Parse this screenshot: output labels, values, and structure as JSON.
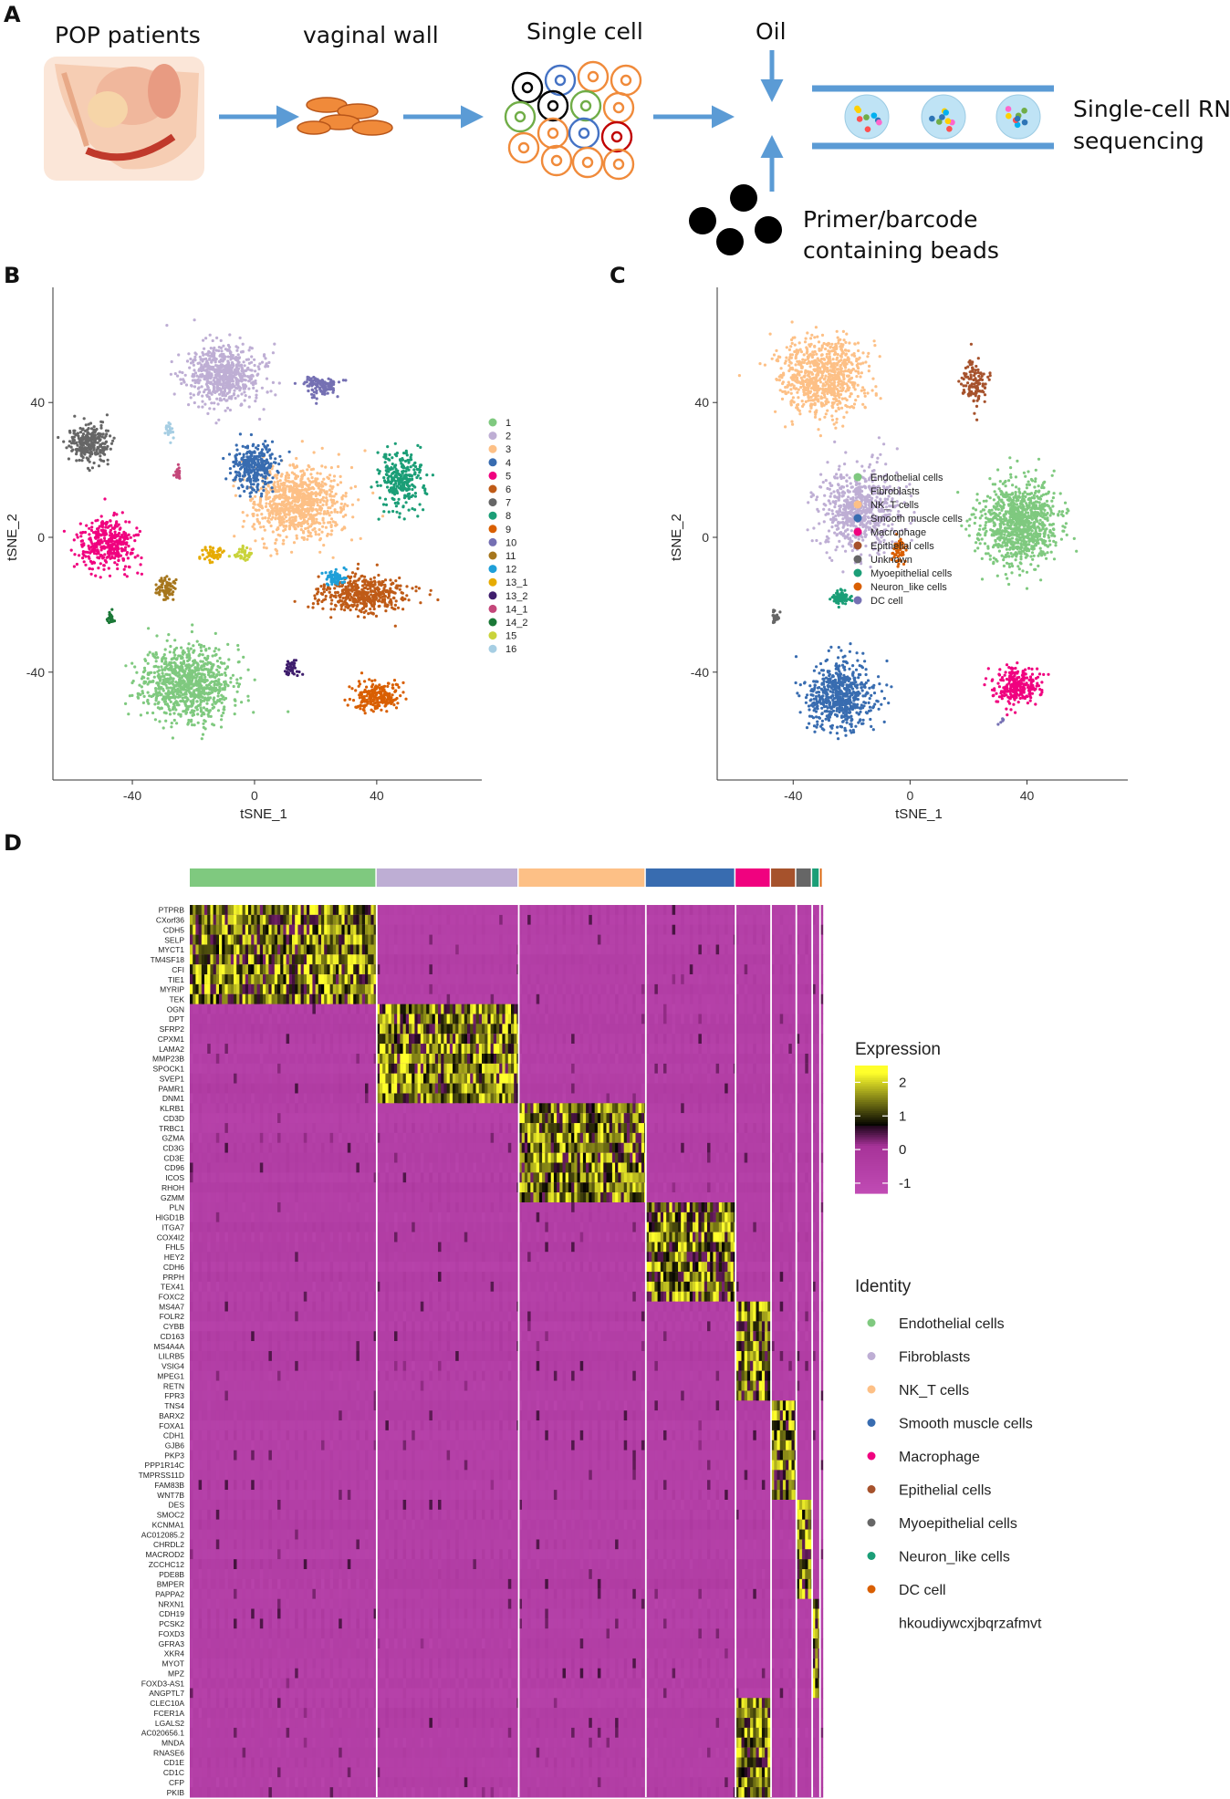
{
  "panels": {
    "a": {
      "label": "A",
      "steps": {
        "patients": "POP patients",
        "tissue": "vaginal wall",
        "cells": "Single cell",
        "oil": "Oil",
        "sequencing_line1": "Single-cell RNA",
        "sequencing_line2": "sequencing",
        "beads_line1": "Primer/barcode",
        "beads_line2": "containing beads"
      }
    },
    "b": {
      "label": "B"
    },
    "c": {
      "label": "C"
    },
    "d": {
      "label": "D"
    }
  },
  "colors": {
    "cluster_palette": [
      "#7fc97f",
      "#beaed4",
      "#fdc086",
      "#386cb0",
      "#f0027f",
      "#bf5b17",
      "#666666",
      "#1b9e77",
      "#d95f02",
      "#7570b3",
      "#a6761d",
      "#1f9fd8",
      "#e6ab02",
      "#3f1e6d",
      "#c4477a",
      "#1b7837",
      "#c9d33b",
      "#a6cee3"
    ],
    "arrow": "#5b9bd5",
    "heatmap_low": "#c04bb4",
    "heatmap_mid": "#000000",
    "heatmap_high": "#ffff2b"
  },
  "chart_data": [
    {
      "type": "scatter",
      "panel": "B",
      "title": "",
      "xlabel": "tSNE_1",
      "ylabel": "tSNE_2",
      "xticks": [
        "-40",
        "0",
        "40"
      ],
      "yticks": [
        "-40",
        "0",
        "40"
      ],
      "xlim": [
        -66,
        72
      ],
      "ylim": [
        -72,
        72
      ],
      "legend_position": "right",
      "legend": [
        "1",
        "2",
        "3",
        "4",
        "5",
        "6",
        "7",
        "8",
        "9",
        "10",
        "11",
        "12",
        "13_1",
        "13_2",
        "14_1",
        "14_2",
        "15",
        "16"
      ],
      "clusters": [
        {
          "name": "1",
          "color_index": 0,
          "cx": -22,
          "cy": -43,
          "sx": 13,
          "sy": 10,
          "n": 900
        },
        {
          "name": "2",
          "color_index": 1,
          "cx": -10,
          "cy": 48,
          "sx": 11,
          "sy": 8,
          "n": 650
        },
        {
          "name": "3",
          "color_index": 2,
          "cx": 14,
          "cy": 10,
          "sx": 14,
          "sy": 10,
          "n": 850
        },
        {
          "name": "4",
          "color_index": 3,
          "cx": 0,
          "cy": 21,
          "sx": 6,
          "sy": 6,
          "n": 320
        },
        {
          "name": "5",
          "color_index": 4,
          "cx": -48,
          "cy": -2,
          "sx": 8,
          "sy": 7,
          "n": 380
        },
        {
          "name": "6",
          "color_index": 5,
          "cx": 35,
          "cy": -17,
          "sx": 13,
          "sy": 5,
          "n": 450
        },
        {
          "name": "7",
          "color_index": 6,
          "cx": -54,
          "cy": 28,
          "sx": 6,
          "sy": 5,
          "n": 260
        },
        {
          "name": "8",
          "color_index": 7,
          "cx": 48,
          "cy": 17,
          "sx": 7,
          "sy": 8,
          "n": 280
        },
        {
          "name": "9",
          "color_index": 8,
          "cx": 40,
          "cy": -47,
          "sx": 7,
          "sy": 4,
          "n": 220
        },
        {
          "name": "10",
          "color_index": 9,
          "cx": 22,
          "cy": 45,
          "sx": 6,
          "sy": 3,
          "n": 120
        },
        {
          "name": "11",
          "color_index": 10,
          "cx": -29,
          "cy": -15,
          "sx": 3,
          "sy": 3,
          "n": 80
        },
        {
          "name": "12",
          "color_index": 11,
          "cx": 26,
          "cy": -12,
          "sx": 3,
          "sy": 2,
          "n": 70
        },
        {
          "name": "13_1",
          "color_index": 12,
          "cx": -13,
          "cy": -5,
          "sx": 3,
          "sy": 2,
          "n": 50
        },
        {
          "name": "13_2",
          "color_index": 13,
          "cx": 12,
          "cy": -39,
          "sx": 2,
          "sy": 2,
          "n": 40
        },
        {
          "name": "14_1",
          "color_index": 14,
          "cx": -25,
          "cy": 19,
          "sx": 1,
          "sy": 2,
          "n": 20
        },
        {
          "name": "14_2",
          "color_index": 15,
          "cx": -47,
          "cy": -24,
          "sx": 1,
          "sy": 2,
          "n": 25
        },
        {
          "name": "15",
          "color_index": 16,
          "cx": -4,
          "cy": -5,
          "sx": 3,
          "sy": 2,
          "n": 35
        },
        {
          "name": "16",
          "color_index": 17,
          "cx": -28,
          "cy": 32,
          "sx": 2,
          "sy": 2,
          "n": 20
        }
      ]
    },
    {
      "type": "scatter",
      "panel": "C",
      "title": "",
      "xlabel": "tSNE_1",
      "ylabel": "tSNE_2",
      "xticks": [
        "-40",
        "0",
        "40"
      ],
      "yticks": [
        "-40",
        "0",
        "40"
      ],
      "xlim": [
        -66,
        72
      ],
      "ylim": [
        -72,
        72
      ],
      "legend_position": "right",
      "legend": [
        "Endothelial cells",
        "Fibroblasts",
        "NK_T cells",
        "Smooth muscle cells",
        "Macrophage",
        "Epithelial cells",
        "Unknown",
        "Myoepithelial cells",
        "Neuron_like cells",
        "DC cell"
      ],
      "legend_colors": [
        "#7fc97f",
        "#beaed4",
        "#fdc086",
        "#386cb0",
        "#f0027f",
        "#a6522c",
        "#666666",
        "#1b9e77",
        "#d95f02",
        "#7570b3"
      ],
      "clusters": [
        {
          "name": "Endothelial cells",
          "color_index": 0,
          "cx": 37,
          "cy": 4,
          "sx": 12,
          "sy": 11,
          "n": 950
        },
        {
          "name": "Fibroblasts",
          "color_index": 1,
          "cx": -17,
          "cy": 8,
          "sx": 12,
          "sy": 11,
          "n": 700
        },
        {
          "name": "NK_T cells",
          "color_index": 2,
          "cx": -30,
          "cy": 48,
          "sx": 13,
          "sy": 10,
          "n": 780
        },
        {
          "name": "Smooth muscle cells",
          "color_index": 3,
          "cx": -24,
          "cy": -47,
          "sx": 11,
          "sy": 9,
          "n": 600
        },
        {
          "name": "Macrophage",
          "color_index": 4,
          "cx": 37,
          "cy": -44,
          "sx": 7,
          "sy": 5,
          "n": 260
        },
        {
          "name": "Epithelial cells",
          "color_index": 5,
          "cx": 22,
          "cy": 46,
          "sx": 4,
          "sy": 6,
          "n": 130
        },
        {
          "name": "Unknown",
          "color_index": 6,
          "cx": -46,
          "cy": -24,
          "sx": 1,
          "sy": 2,
          "n": 30
        },
        {
          "name": "Myoepithelial cells",
          "color_index": 7,
          "cx": -24,
          "cy": -18,
          "sx": 3,
          "sy": 2,
          "n": 90
        },
        {
          "name": "Neuron_like cells",
          "color_index": 8,
          "cx": -4,
          "cy": -4,
          "sx": 2,
          "sy": 4,
          "n": 60
        },
        {
          "name": "DC cell",
          "color_index": 9,
          "cx": 31,
          "cy": -55,
          "sx": 1,
          "sy": 1,
          "n": 6
        }
      ]
    },
    {
      "type": "heatmap",
      "panel": "D",
      "title": "",
      "colorbar_title": "Expression",
      "colorbar_ticks": [
        "2",
        "1",
        "0",
        "-1"
      ],
      "colorbar_range": [
        -1.3,
        2.5
      ],
      "identity_title": "Identity",
      "identity_groups": [
        {
          "name": "Endothelial cells",
          "color": "#7fc97f",
          "cells": 1000
        },
        {
          "name": "Fibroblasts",
          "color": "#beaed4",
          "cells": 760
        },
        {
          "name": "NK_T cells",
          "color": "#fdc086",
          "cells": 680
        },
        {
          "name": "Smooth muscle cells",
          "color": "#386cb0",
          "cells": 480
        },
        {
          "name": "Macrophage",
          "color": "#f0027f",
          "cells": 190
        },
        {
          "name": "Epithelial cells",
          "color": "#a6522c",
          "cells": 135
        },
        {
          "name": "Myoepithelial cells",
          "color": "#666666",
          "cells": 85
        },
        {
          "name": "Neuron_like cells",
          "color": "#1b9e77",
          "cells": 42
        },
        {
          "name": "DC cell",
          "color": "#d95f02",
          "cells": 16
        }
      ],
      "identity_extra_label": "hkoudiywcxjbqrzafmvt",
      "gene_blocks": [
        [
          "PTPRB",
          "CXorf36",
          "CDH5",
          "SELP",
          "MYCT1",
          "TM4SF18",
          "CFI",
          "TIE1",
          "MYRIP",
          "TEK"
        ],
        [
          "OGN",
          "DPT",
          "SFRP2",
          "CPXM1",
          "LAMA2",
          "MMP23B",
          "SPOCK1",
          "SVEP1",
          "PAMR1",
          "DNM1"
        ],
        [
          "KLRB1",
          "CD3D",
          "TRBC1",
          "GZMA",
          "CD3G",
          "CD3E",
          "CD96",
          "ICOS",
          "RHOH",
          "GZMM"
        ],
        [
          "PLN",
          "HIGD1B",
          "ITGA7",
          "COX4I2",
          "FHL5",
          "HEY2",
          "CDH6",
          "PRPH",
          "TEX41",
          "FOXC2"
        ],
        [
          "MS4A7",
          "FOLR2",
          "CYBB",
          "CD163",
          "MS4A4A",
          "LILRB5",
          "VSIG4",
          "MPEG1",
          "RETN",
          "FPR3"
        ],
        [
          "TNS4",
          "BARX2",
          "FOXA1",
          "CDH1",
          "GJB6",
          "PKP3",
          "PPP1R14C",
          "TMPRSS11D",
          "FAM83B",
          "WNT7B"
        ],
        [
          "DES",
          "SMOC2",
          "KCNMA1",
          "AC012085.2",
          "CHRDL2",
          "MACROD2",
          "ZCCHC12",
          "PDE8B",
          "BMPER",
          "PAPPA2"
        ],
        [
          "NRXN1",
          "CDH19",
          "PCSK2",
          "FOXD3",
          "GFRA3",
          "XKR4",
          "MYOT",
          "MPZ",
          "FOXD3-AS1",
          "ANGPTL7"
        ],
        [
          "CLEC10A",
          "FCER1A",
          "LGALS2",
          "AC020656.1",
          "MNDA",
          "RNASE6",
          "CD1E",
          "CD1C",
          "CFP",
          "PKIB"
        ]
      ]
    }
  ]
}
